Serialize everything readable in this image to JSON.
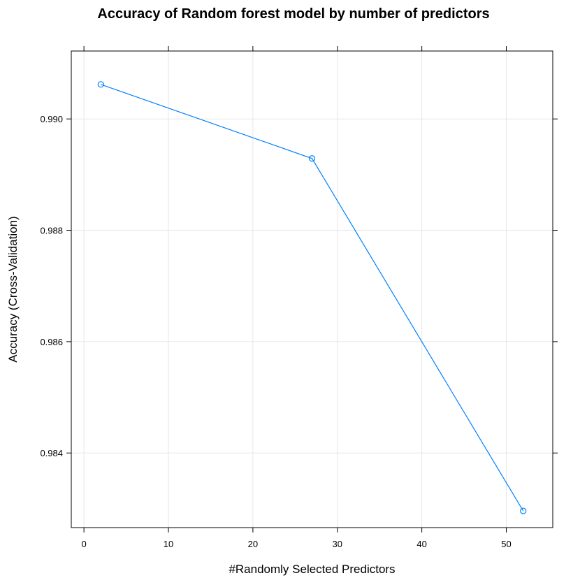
{
  "chart_data": {
    "type": "line",
    "title": "Accuracy of Random forest model by number of predictors",
    "xlabel": "#Randomly Selected Predictors",
    "ylabel": "Accuracy (Cross-Validation)",
    "xlim": [
      -1.5,
      55.5
    ],
    "ylim": [
      0.98266,
      0.99122
    ],
    "xticks": [
      0,
      10,
      20,
      30,
      40,
      50
    ],
    "xtick_labels": [
      "0",
      "10",
      "20",
      "30",
      "40",
      "50"
    ],
    "yticks": [
      0.984,
      0.986,
      0.988,
      0.99
    ],
    "ytick_labels": [
      "0.984",
      "0.986",
      "0.988",
      "0.990"
    ],
    "grid": true,
    "series": [
      {
        "x": [
          2,
          27,
          52
        ],
        "y": [
          0.99062,
          0.98929,
          0.98296
        ],
        "color": "#0080ff"
      }
    ]
  }
}
